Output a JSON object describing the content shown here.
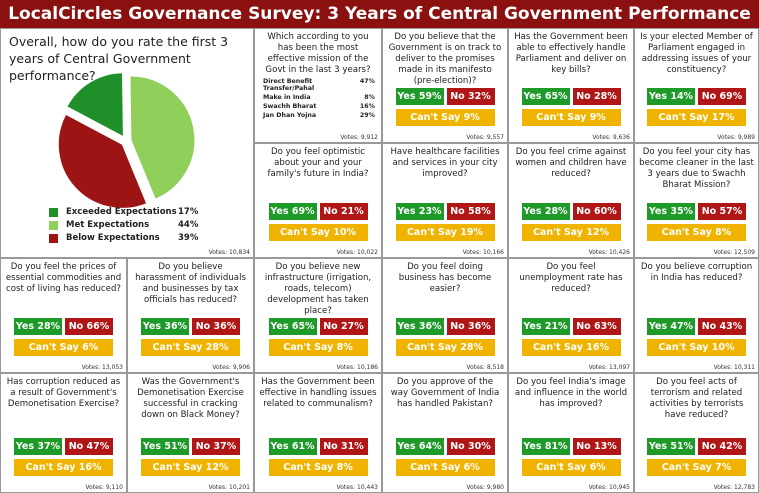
{
  "header": {
    "title": "LocalCircles Governance Survey: 3 Years of Central Government Performance"
  },
  "overall": {
    "question": "Overall, how do you rate the first 3 years of Central Government performance?",
    "names": [
      "Exceeded Expectations",
      "Met Expectations",
      "Below Expectations"
    ],
    "values": [
      17,
      44,
      39
    ],
    "value_labels": [
      "17%",
      "44%",
      "39%"
    ],
    "colors": [
      "#1f8f2a",
      "#8fcf5a",
      "#9c1414"
    ],
    "votes": "Votes: 10,834"
  },
  "mission": {
    "question": "Which according to you has been the most effective mission of the Govt in the last 3 years?",
    "items": [
      [
        "Direct Benefit Transfer/Pahal",
        "47%"
      ],
      [
        "Make in India",
        "8%"
      ],
      [
        "Swachh Bharat",
        "16%"
      ],
      [
        "Jan Dhan Yojna",
        "29%"
      ]
    ],
    "votes": "Votes: 9,912"
  },
  "cards": [
    {
      "question": "Do you believe that the Government is on track to deliver to the promises made in its manifesto (pre-election)?",
      "yes": "Yes 59%",
      "no": "No 32%",
      "cant_say": "Can't Say 9%",
      "votes": "Votes: 9,557"
    },
    {
      "question": "Has the Government been able to effectively handle Parliament and deliver on key bills?",
      "yes": "Yes 65%",
      "no": "No 28%",
      "cant_say": "Can't Say 9%",
      "votes": "Votes: 9,636"
    },
    {
      "question": "Is your elected Member of Parliament engaged in addressing issues of your constituency?",
      "yes": "Yes 14%",
      "no": "No 69%",
      "cant_say": "Can't Say 17%",
      "votes": "Votes: 9,989"
    },
    {
      "question": "Do you feel optimistic about your and your family's future in India?",
      "yes": "Yes 69%",
      "no": "No 21%",
      "cant_say": "Can't Say 10%",
      "votes": "Votes: 10,022"
    },
    {
      "question": "Have healthcare facilities and services in your city improved?",
      "yes": "Yes 23%",
      "no": "No 58%",
      "cant_say": "Can't Say 19%",
      "votes": "Votes: 10,166"
    },
    {
      "question": "Do you feel crime against women and children have reduced?",
      "yes": "Yes 28%",
      "no": "No 60%",
      "cant_say": "Can't Say 12%",
      "votes": "Votes: 10,426"
    },
    {
      "question": "Do you feel your city has become cleaner in the last 3 years due to Swachh Bharat Mission?",
      "yes": "Yes 35%",
      "no": "No 57%",
      "cant_say": "Can't Say 8%",
      "votes": "Votes: 12,509"
    },
    {
      "question": "Do you feel the prices of essential commodities and cost of living has reduced?",
      "yes": "Yes 28%",
      "no": "No 66%",
      "cant_say": "Can't Say 6%",
      "votes": "Votes: 13,053"
    },
    {
      "question": "Do you believe harassment of individuals and businesses by tax officials has reduced?",
      "yes": "Yes 36%",
      "no": "No 36%",
      "cant_say": "Can't Say 28%",
      "votes": "Votes: 9,906"
    },
    {
      "question": "Do you believe new infrastructure (irrigation, roads, telecom) development has taken place?",
      "yes": "Yes 65%",
      "no": "No 27%",
      "cant_say": "Can't Say 8%",
      "votes": "Votes: 10,186"
    },
    {
      "question": "Do you feel doing business has become easier?",
      "yes": "Yes 36%",
      "no": "No 36%",
      "cant_say": "Can't Say 28%",
      "votes": "Votes: 8,518"
    },
    {
      "question": "Do you feel unemployment rate has reduced?",
      "yes": "Yes 21%",
      "no": "No 63%",
      "cant_say": "Can't Say 16%",
      "votes": "Votes: 13,097"
    },
    {
      "question": "Do you believe corruption in India has reduced?",
      "yes": "Yes 47%",
      "no": "No 43%",
      "cant_say": "Can't Say 10%",
      "votes": "Votes: 10,311"
    },
    {
      "question": "Has corruption reduced as a result of Government's Demonetisation Exercise?",
      "yes": "Yes 37%",
      "no": "No 47%",
      "cant_say": "Can't Say 16%",
      "votes": "Votes: 9,110"
    },
    {
      "question": "Was the Government's Demonetisation Exercise successful in cracking down on Black Money?",
      "yes": "Yes 51%",
      "no": "No 37%",
      "cant_say": "Can't Say 12%",
      "votes": "Votes: 10,201"
    },
    {
      "question": "Has the Government been effective in handling issues related to communalism?",
      "yes": "Yes 61%",
      "no": "No 31%",
      "cant_say": "Can't Say 8%",
      "votes": "Votes: 10,443"
    },
    {
      "question": "Do you approve of the way Government of India has handled Pakistan?",
      "yes": "Yes 64%",
      "no": "No 30%",
      "cant_say": "Can't Say 6%",
      "votes": "Votes: 9,980"
    },
    {
      "question": "Do you feel India's image and influence in the world has improved?",
      "yes": "Yes 81%",
      "no": "No 13%",
      "cant_say": "Can't Say 6%",
      "votes": "Votes: 10,945"
    },
    {
      "question": "Do you feel acts of terrorism and related activities by terrorists have reduced?",
      "yes": "Yes 51%",
      "no": "No 42%",
      "cant_say": "Can't Say 7%",
      "votes": "Votes: 12,783"
    }
  ]
}
